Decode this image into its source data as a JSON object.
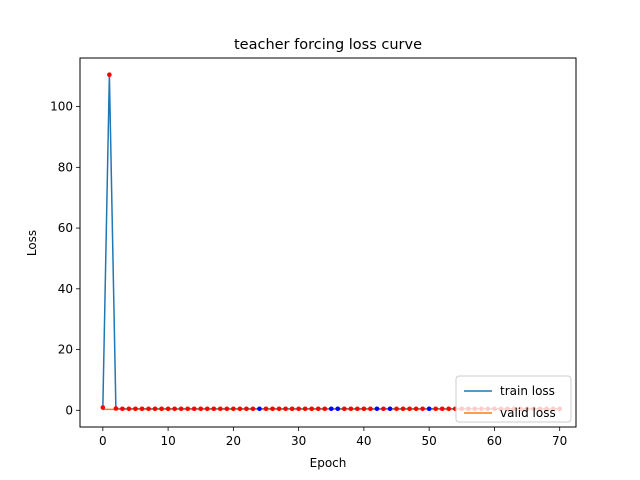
{
  "chart_data": {
    "type": "line",
    "title": "teacher forcing loss curve",
    "xlabel": "Epoch",
    "ylabel": "Loss",
    "xlim": [
      -3.5,
      72.5
    ],
    "ylim": [
      -5.5,
      116
    ],
    "xticks": [
      0,
      10,
      20,
      30,
      40,
      50,
      60,
      70
    ],
    "yticks": [
      0,
      20,
      40,
      60,
      80,
      100
    ],
    "x": [
      0,
      1,
      2,
      3,
      4,
      5,
      6,
      7,
      8,
      9,
      10,
      11,
      12,
      13,
      14,
      15,
      16,
      17,
      18,
      19,
      20,
      21,
      22,
      23,
      24,
      25,
      26,
      27,
      28,
      29,
      30,
      31,
      32,
      33,
      34,
      35,
      36,
      37,
      38,
      39,
      40,
      41,
      42,
      43,
      44,
      45,
      46,
      47,
      48,
      49,
      50,
      51,
      52,
      53,
      54,
      55,
      56,
      57,
      58,
      59,
      60,
      61,
      62,
      63,
      64,
      65,
      66,
      67,
      68,
      69,
      70
    ],
    "series": [
      {
        "name": "train loss",
        "color": "#1f77b4",
        "values": [
          0.9,
          110.5,
          0.6,
          0.5,
          0.5,
          0.5,
          0.5,
          0.5,
          0.5,
          0.5,
          0.5,
          0.5,
          0.5,
          0.5,
          0.5,
          0.5,
          0.5,
          0.5,
          0.5,
          0.5,
          0.5,
          0.5,
          0.5,
          0.5,
          0.5,
          0.5,
          0.5,
          0.5,
          0.5,
          0.5,
          0.5,
          0.5,
          0.5,
          0.5,
          0.5,
          0.5,
          0.5,
          0.5,
          0.5,
          0.5,
          0.5,
          0.5,
          0.5,
          0.5,
          0.5,
          0.5,
          0.5,
          0.5,
          0.5,
          0.5,
          0.5,
          0.5,
          0.5,
          0.5,
          0.5,
          0.5,
          0.5,
          0.5,
          0.5,
          0.5,
          0.5,
          0.5,
          0.5,
          0.5,
          0.5,
          0.5,
          0.5,
          0.5,
          0.5,
          0.5,
          0.5
        ]
      },
      {
        "name": "valid loss",
        "color": "#ff7f0e",
        "values": [
          0.3,
          0.3,
          0.3,
          0.3,
          0.3,
          0.3,
          0.3,
          0.3,
          0.3,
          0.3,
          0.3,
          0.3,
          0.3,
          0.3,
          0.3,
          0.3,
          0.3,
          0.3,
          0.3,
          0.3,
          0.3,
          0.3,
          0.3,
          0.3,
          0.3,
          0.3,
          0.3,
          0.3,
          0.3,
          0.3,
          0.3,
          0.3,
          0.3,
          0.3,
          0.3,
          0.3,
          0.3,
          0.3,
          0.3,
          0.3,
          0.3,
          0.3,
          0.3,
          0.3,
          0.3,
          0.3,
          0.3,
          0.3,
          0.3,
          0.3,
          0.3,
          0.3,
          0.3,
          0.3,
          0.3,
          0.3,
          0.3,
          0.3,
          0.3,
          0.3,
          0.3,
          0.3,
          0.3,
          0.3,
          0.3,
          0.3,
          0.3,
          0.3,
          0.3,
          0.3,
          0.3
        ]
      }
    ],
    "markers": {
      "red_color": "#ff0000",
      "blue_color": "#0000ff",
      "blue_epochs": [
        24,
        35,
        36,
        42,
        44,
        50
      ]
    },
    "legend_placement": "lower-right",
    "grid": false
  }
}
